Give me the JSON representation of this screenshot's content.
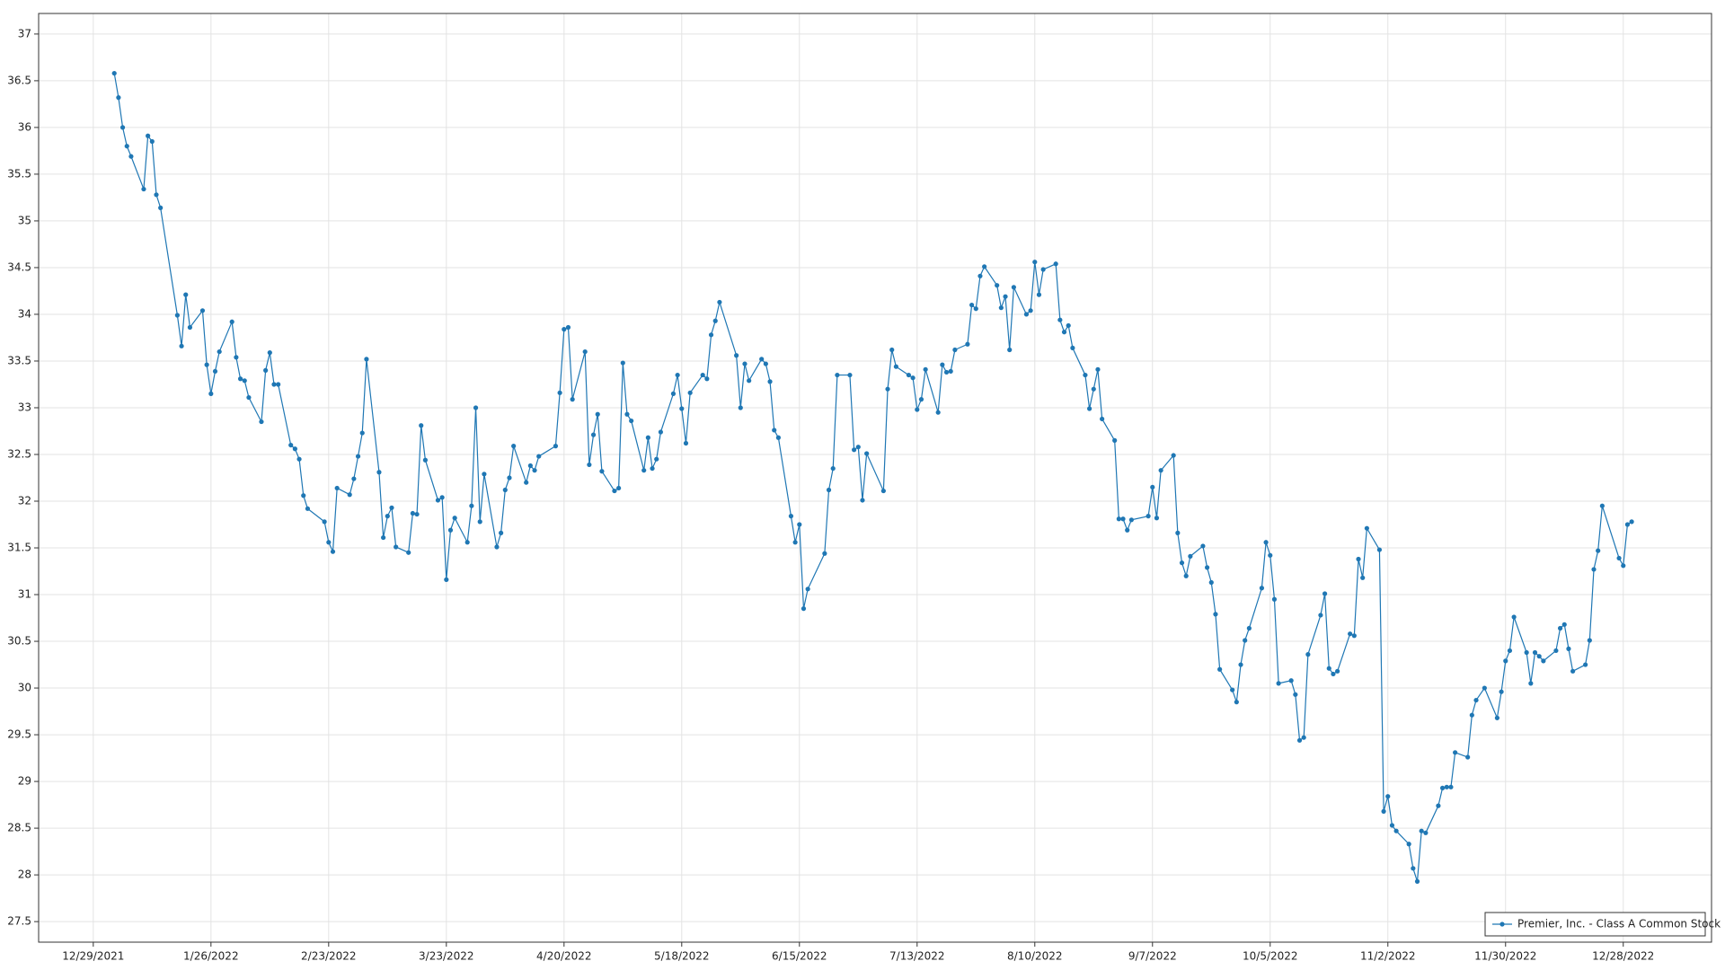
{
  "chart_data": {
    "type": "line",
    "x": [
      "1/3/2022",
      "1/4/2022",
      "1/5/2022",
      "1/6/2022",
      "1/7/2022",
      "1/10/2022",
      "1/11/2022",
      "1/12/2022",
      "1/13/2022",
      "1/14/2022",
      "1/18/2022",
      "1/19/2022",
      "1/20/2022",
      "1/21/2022",
      "1/24/2022",
      "1/25/2022",
      "1/26/2022",
      "1/27/2022",
      "1/28/2022",
      "1/31/2022",
      "2/1/2022",
      "2/2/2022",
      "2/3/2022",
      "2/4/2022",
      "2/7/2022",
      "2/8/2022",
      "2/9/2022",
      "2/10/2022",
      "2/11/2022",
      "2/14/2022",
      "2/15/2022",
      "2/16/2022",
      "2/17/2022",
      "2/18/2022",
      "2/22/2022",
      "2/23/2022",
      "2/24/2022",
      "2/25/2022",
      "2/28/2022",
      "3/1/2022",
      "3/2/2022",
      "3/3/2022",
      "3/4/2022",
      "3/7/2022",
      "3/8/2022",
      "3/9/2022",
      "3/10/2022",
      "3/11/2022",
      "3/14/2022",
      "3/15/2022",
      "3/16/2022",
      "3/17/2022",
      "3/18/2022",
      "3/21/2022",
      "3/22/2022",
      "3/23/2022",
      "3/24/2022",
      "3/25/2022",
      "3/28/2022",
      "3/29/2022",
      "3/30/2022",
      "3/31/2022",
      "4/1/2022",
      "4/4/2022",
      "4/5/2022",
      "4/6/2022",
      "4/7/2022",
      "4/8/2022",
      "4/11/2022",
      "4/12/2022",
      "4/13/2022",
      "4/14/2022",
      "4/18/2022",
      "4/19/2022",
      "4/20/2022",
      "4/21/2022",
      "4/22/2022",
      "4/25/2022",
      "4/26/2022",
      "4/27/2022",
      "4/28/2022",
      "4/29/2022",
      "5/2/2022",
      "5/3/2022",
      "5/4/2022",
      "5/5/2022",
      "5/6/2022",
      "5/9/2022",
      "5/10/2022",
      "5/11/2022",
      "5/12/2022",
      "5/13/2022",
      "5/16/2022",
      "5/17/2022",
      "5/18/2022",
      "5/19/2022",
      "5/20/2022",
      "5/23/2022",
      "5/24/2022",
      "5/25/2022",
      "5/26/2022",
      "5/27/2022",
      "5/31/2022",
      "6/1/2022",
      "6/2/2022",
      "6/3/2022",
      "6/6/2022",
      "6/7/2022",
      "6/8/2022",
      "6/9/2022",
      "6/10/2022",
      "6/13/2022",
      "6/14/2022",
      "6/15/2022",
      "6/16/2022",
      "6/17/2022",
      "6/21/2022",
      "6/22/2022",
      "6/23/2022",
      "6/24/2022",
      "6/27/2022",
      "6/28/2022",
      "6/29/2022",
      "6/30/2022",
      "7/1/2022",
      "7/5/2022",
      "7/6/2022",
      "7/7/2022",
      "7/8/2022",
      "7/11/2022",
      "7/12/2022",
      "7/13/2022",
      "7/14/2022",
      "7/15/2022",
      "7/18/2022",
      "7/19/2022",
      "7/20/2022",
      "7/21/2022",
      "7/22/2022",
      "7/25/2022",
      "7/26/2022",
      "7/27/2022",
      "7/28/2022",
      "7/29/2022",
      "8/1/2022",
      "8/2/2022",
      "8/3/2022",
      "8/4/2022",
      "8/5/2022",
      "8/8/2022",
      "8/9/2022",
      "8/10/2022",
      "8/11/2022",
      "8/12/2022",
      "8/15/2022",
      "8/16/2022",
      "8/17/2022",
      "8/18/2022",
      "8/19/2022",
      "8/22/2022",
      "8/23/2022",
      "8/24/2022",
      "8/25/2022",
      "8/26/2022",
      "8/29/2022",
      "8/30/2022",
      "8/31/2022",
      "9/1/2022",
      "9/2/2022",
      "9/6/2022",
      "9/7/2022",
      "9/8/2022",
      "9/9/2022",
      "9/12/2022",
      "9/13/2022",
      "9/14/2022",
      "9/15/2022",
      "9/16/2022",
      "9/19/2022",
      "9/20/2022",
      "9/21/2022",
      "9/22/2022",
      "9/23/2022",
      "9/26/2022",
      "9/27/2022",
      "9/28/2022",
      "9/29/2022",
      "9/30/2022",
      "10/3/2022",
      "10/4/2022",
      "10/5/2022",
      "10/6/2022",
      "10/7/2022",
      "10/10/2022",
      "10/11/2022",
      "10/12/2022",
      "10/13/2022",
      "10/14/2022",
      "10/17/2022",
      "10/18/2022",
      "10/19/2022",
      "10/20/2022",
      "10/21/2022",
      "10/24/2022",
      "10/25/2022",
      "10/26/2022",
      "10/27/2022",
      "10/28/2022",
      "10/31/2022",
      "11/1/2022",
      "11/2/2022",
      "11/3/2022",
      "11/4/2022",
      "11/7/2022",
      "11/8/2022",
      "11/9/2022",
      "11/10/2022",
      "11/11/2022",
      "11/14/2022",
      "11/15/2022",
      "11/16/2022",
      "11/17/2022",
      "11/18/2022",
      "11/21/2022",
      "11/22/2022",
      "11/23/2022",
      "11/25/2022",
      "11/28/2022",
      "11/29/2022",
      "11/30/2022",
      "12/1/2022",
      "12/2/2022",
      "12/5/2022",
      "12/6/2022",
      "12/7/2022",
      "12/8/2022",
      "12/9/2022",
      "12/12/2022",
      "12/13/2022",
      "12/14/2022",
      "12/15/2022",
      "12/16/2022",
      "12/19/2022",
      "12/20/2022",
      "12/21/2022",
      "12/22/2022",
      "12/23/2022",
      "12/27/2022",
      "12/28/2022",
      "12/29/2022",
      "12/30/2022"
    ],
    "series": [
      {
        "name": "Premier, Inc. - Class A Common Stock",
        "color": "#1f77b4",
        "values": [
          36.58,
          36.32,
          36.0,
          35.8,
          35.69,
          35.34,
          35.91,
          35.85,
          35.28,
          35.14,
          33.99,
          33.66,
          34.21,
          33.86,
          34.04,
          33.46,
          33.15,
          33.39,
          33.6,
          33.92,
          33.54,
          33.31,
          33.29,
          33.11,
          32.85,
          33.4,
          33.59,
          33.25,
          33.25,
          32.6,
          32.56,
          32.45,
          32.06,
          31.92,
          31.78,
          31.56,
          31.46,
          32.14,
          32.07,
          32.24,
          32.48,
          32.73,
          33.52,
          32.31,
          31.61,
          31.84,
          31.93,
          31.51,
          31.45,
          31.87,
          31.86,
          32.81,
          32.44,
          32.01,
          32.04,
          31.16,
          31.69,
          31.82,
          31.56,
          31.95,
          33.0,
          31.78,
          32.29,
          31.51,
          31.66,
          32.12,
          32.25,
          32.59,
          32.2,
          32.38,
          32.33,
          32.48,
          32.59,
          33.16,
          33.84,
          33.86,
          33.09,
          33.6,
          32.39,
          32.71,
          32.93,
          32.32,
          32.11,
          32.14,
          33.48,
          32.93,
          32.86,
          32.33,
          32.68,
          32.35,
          32.45,
          32.74,
          33.15,
          33.35,
          32.99,
          32.62,
          33.16,
          33.35,
          33.31,
          33.78,
          33.93,
          34.13,
          33.56,
          33.0,
          33.47,
          33.29,
          33.52,
          33.47,
          33.28,
          32.76,
          32.68,
          31.84,
          31.56,
          31.75,
          30.85,
          31.06,
          31.44,
          32.12,
          32.35,
          33.35,
          33.35,
          32.55,
          32.58,
          32.01,
          32.51,
          32.11,
          33.2,
          33.62,
          33.44,
          33.35,
          33.32,
          32.98,
          33.09,
          33.41,
          32.95,
          33.46,
          33.38,
          33.39,
          33.62,
          33.68,
          34.1,
          34.06,
          34.41,
          34.51,
          34.31,
          34.07,
          34.19,
          33.62,
          34.29,
          34.0,
          34.04,
          34.56,
          34.21,
          34.48,
          34.54,
          33.94,
          33.81,
          33.88,
          33.64,
          33.35,
          32.99,
          33.2,
          33.41,
          32.88,
          32.65,
          31.81,
          31.81,
          31.69,
          31.8,
          31.84,
          32.15,
          31.82,
          32.33,
          32.49,
          31.66,
          31.34,
          31.2,
          31.41,
          31.52,
          31.29,
          31.13,
          30.79,
          30.2,
          29.98,
          29.85,
          30.25,
          30.51,
          30.64,
          31.07,
          31.56,
          31.42,
          30.95,
          30.05,
          30.08,
          29.93,
          29.44,
          29.47,
          30.36,
          30.78,
          31.01,
          30.21,
          30.15,
          30.18,
          30.58,
          30.56,
          31.38,
          31.18,
          31.71,
          31.48,
          28.68,
          28.84,
          28.53,
          28.47,
          28.33,
          28.07,
          27.93,
          28.47,
          28.45,
          28.74,
          28.93,
          28.94,
          28.94,
          29.31,
          29.26,
          29.71,
          29.87,
          30.0,
          29.68,
          29.96,
          30.29,
          30.4,
          30.76,
          30.38,
          30.05,
          30.38,
          30.34,
          30.29,
          30.4,
          30.64,
          30.68,
          30.42,
          30.18,
          30.25,
          30.51,
          31.27,
          31.47,
          31.95,
          31.39,
          31.31,
          31.75,
          31.78
        ]
      }
    ],
    "xlim": [
      "12/16/2021",
      "1/18/2023"
    ],
    "xticks": [
      "12/29/2021",
      "1/26/2022",
      "2/23/2022",
      "3/23/2022",
      "4/20/2022",
      "5/18/2022",
      "6/15/2022",
      "7/13/2022",
      "8/10/2022",
      "9/7/2022",
      "10/5/2022",
      "11/2/2022",
      "11/30/2022",
      "12/28/2022"
    ],
    "ylim": [
      27.28,
      37.22
    ],
    "yticks": [
      27.5,
      28,
      28.5,
      29,
      29.5,
      30,
      30.5,
      31,
      31.5,
      32,
      32.5,
      33,
      33.5,
      34,
      34.5,
      35,
      35.5,
      36,
      36.5,
      37
    ],
    "grid": true,
    "legend": "lower right"
  }
}
